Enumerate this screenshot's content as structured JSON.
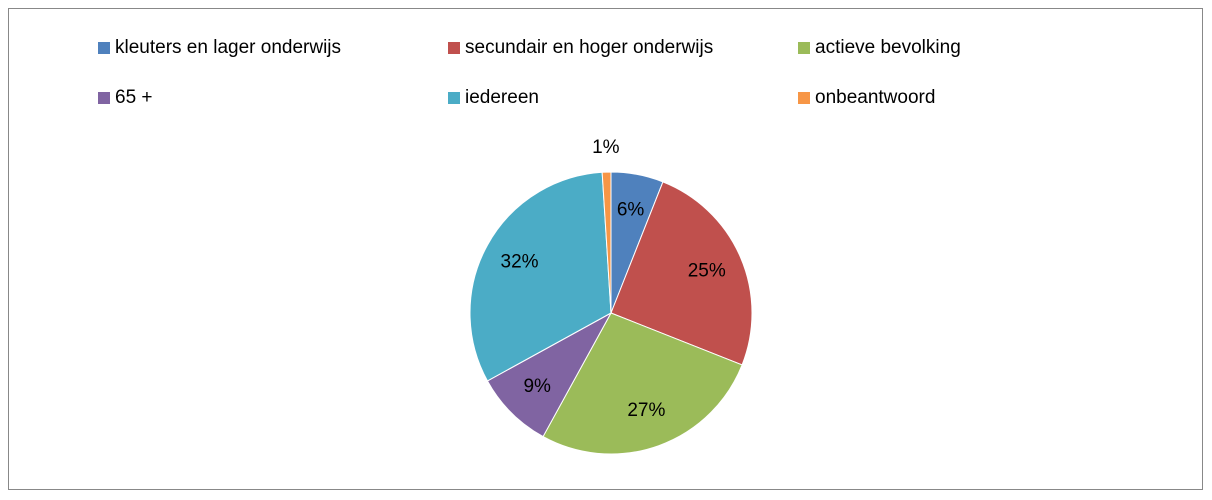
{
  "chart_data": {
    "type": "pie",
    "categories": [
      "kleuters en lager onderwijs",
      "secundair en hoger onderwijs",
      "actieve bevolking",
      "65 +",
      "iedereen",
      "onbeantwoord"
    ],
    "values": [
      6,
      25,
      27,
      9,
      32,
      1
    ],
    "value_labels": [
      "6%",
      "25%",
      "27%",
      "9%",
      "32%",
      "1%"
    ],
    "colors": [
      "#4f81bd",
      "#c0504d",
      "#9bbb59",
      "#8064a2",
      "#4bacc6",
      "#f79646"
    ]
  }
}
